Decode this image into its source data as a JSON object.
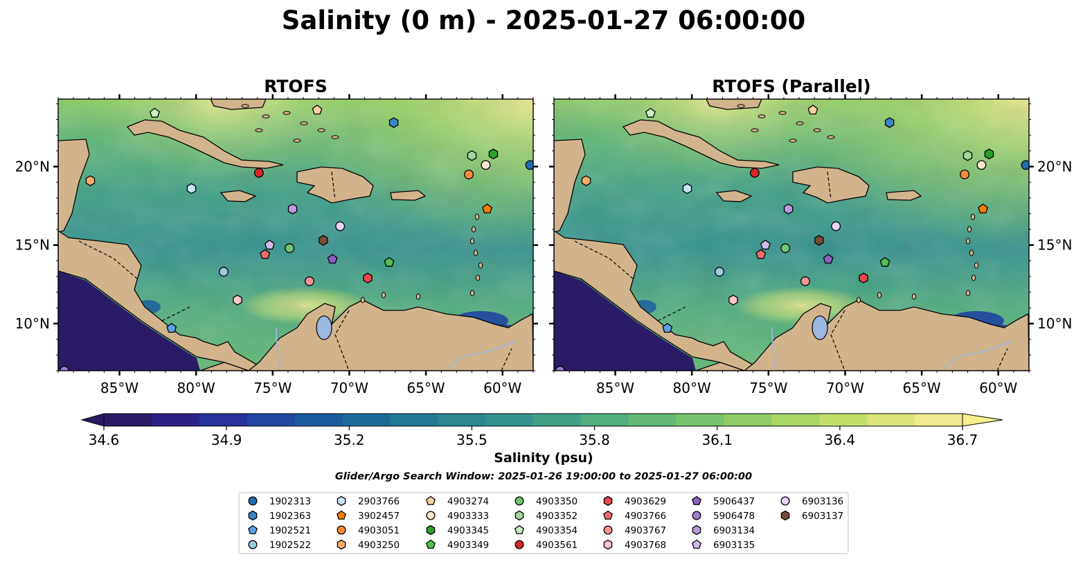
{
  "title": "Salinity (0 m) - 2025-01-27 06:00:00",
  "panels": [
    {
      "title": "RTOFS"
    },
    {
      "title": "RTOFS (Parallel)"
    }
  ],
  "lon_ticks": [
    "85°W",
    "80°W",
    "75°W",
    "70°W",
    "65°W",
    "60°W"
  ],
  "lat_ticks": [
    "20°N",
    "15°N",
    "10°N"
  ],
  "map_extent": {
    "lon": [
      -89,
      -58
    ],
    "lat": [
      7,
      24.3
    ]
  },
  "colorbar": {
    "label": "Salinity (psu)",
    "min": 34.6,
    "max": 36.7,
    "ticks": [
      "34.6",
      "34.9",
      "35.2",
      "35.5",
      "35.8",
      "36.1",
      "36.4",
      "36.7"
    ],
    "colors": [
      "#2b1b66",
      "#2c2185",
      "#27329a",
      "#1f46a0",
      "#1a5a9f",
      "#1b6a9a",
      "#227995",
      "#2b8692",
      "#35938d",
      "#42a087",
      "#52ad7f",
      "#63b975",
      "#78c36d",
      "#8ecc67",
      "#a7d665",
      "#c2df6c",
      "#dbe57a",
      "#f0ea90"
    ]
  },
  "search_window": "Glider/Argo Search Window: 2025-01-26 19:00:00 to 2025-01-27 06:00:00",
  "legend": [
    {
      "id": "1902313",
      "marker": "circle",
      "color": "#1f6fb4"
    },
    {
      "id": "1902363",
      "marker": "hexagon",
      "color": "#3d85c6"
    },
    {
      "id": "1902521",
      "marker": "pentagon",
      "color": "#5ba3e0"
    },
    {
      "id": "1902522",
      "marker": "circle",
      "color": "#9ecae1"
    },
    {
      "id": "2903766",
      "marker": "hexagon",
      "color": "#c6e5f7"
    },
    {
      "id": "3902457",
      "marker": "pentagon",
      "color": "#f57c00"
    },
    {
      "id": "4903051",
      "marker": "circle",
      "color": "#fd8d3c"
    },
    {
      "id": "4903250",
      "marker": "hexagon",
      "color": "#fdae6b"
    },
    {
      "id": "4903274",
      "marker": "pentagon",
      "color": "#fdd0a2"
    },
    {
      "id": "4903333",
      "marker": "circle",
      "color": "#fee6ce"
    },
    {
      "id": "4903345",
      "marker": "hexagon",
      "color": "#2ca02c"
    },
    {
      "id": "4903349",
      "marker": "pentagon",
      "color": "#52c152"
    },
    {
      "id": "4903350",
      "marker": "circle",
      "color": "#74c476"
    },
    {
      "id": "4903352",
      "marker": "hexagon",
      "color": "#a1d99b"
    },
    {
      "id": "4903354",
      "marker": "pentagon",
      "color": "#c7f0c0"
    },
    {
      "id": "4903561",
      "marker": "circle",
      "color": "#d62728"
    },
    {
      "id": "4903629",
      "marker": "hexagon",
      "color": "#e8484a"
    },
    {
      "id": "4903766",
      "marker": "pentagon",
      "color": "#f06b6d"
    },
    {
      "id": "4903767",
      "marker": "circle",
      "color": "#f59497"
    },
    {
      "id": "4903768",
      "marker": "hexagon",
      "color": "#fbc4c6"
    },
    {
      "id": "5906437",
      "marker": "pentagon",
      "color": "#8e5fc2"
    },
    {
      "id": "5906478",
      "marker": "circle",
      "color": "#a47ad1"
    },
    {
      "id": "6903134",
      "marker": "hexagon",
      "color": "#b99adf"
    },
    {
      "id": "6903135",
      "marker": "pentagon",
      "color": "#d2b8ec"
    },
    {
      "id": "6903136",
      "marker": "circle",
      "color": "#e8d4f7"
    },
    {
      "id": "6903137",
      "marker": "hexagon",
      "color": "#7a4a35"
    }
  ],
  "floats": [
    {
      "id": "1902313",
      "lon": -58.2,
      "lat": 20.1
    },
    {
      "id": "1902363",
      "lon": -67.1,
      "lat": 22.8
    },
    {
      "id": "1902521",
      "lon": -81.6,
      "lat": 9.7
    },
    {
      "id": "1902522",
      "lon": -78.2,
      "lat": 13.3
    },
    {
      "id": "2903766",
      "lon": -80.3,
      "lat": 18.6
    },
    {
      "id": "3902457",
      "lon": -61.0,
      "lat": 17.3
    },
    {
      "id": "4903051",
      "lon": -62.2,
      "lat": 19.5
    },
    {
      "id": "4903250",
      "lon": -86.9,
      "lat": 19.1
    },
    {
      "id": "4903274",
      "lon": -72.1,
      "lat": 23.6
    },
    {
      "id": "4903333",
      "lon": -61.1,
      "lat": 20.1
    },
    {
      "id": "4903345",
      "lon": -60.6,
      "lat": 20.8
    },
    {
      "id": "4903349",
      "lon": -67.4,
      "lat": 13.9
    },
    {
      "id": "4903350",
      "lon": -73.9,
      "lat": 14.8
    },
    {
      "id": "4903352",
      "lon": -62.0,
      "lat": 20.7
    },
    {
      "id": "4903354",
      "lon": -82.7,
      "lat": 23.4
    },
    {
      "id": "4903561",
      "lon": -75.9,
      "lat": 19.6
    },
    {
      "id": "4903629",
      "lon": -68.8,
      "lat": 12.9
    },
    {
      "id": "4903766",
      "lon": -75.5,
      "lat": 14.4
    },
    {
      "id": "4903767",
      "lon": -72.6,
      "lat": 12.7
    },
    {
      "id": "4903768",
      "lon": -77.3,
      "lat": 11.5
    },
    {
      "id": "5906437",
      "lon": -71.1,
      "lat": 14.1
    },
    {
      "id": "5906478",
      "lon": -88.6,
      "lat": 7.0
    },
    {
      "id": "6903134",
      "lon": -73.7,
      "lat": 17.3
    },
    {
      "id": "6903135",
      "lon": -75.2,
      "lat": 15.0
    },
    {
      "id": "6903136",
      "lon": -70.6,
      "lat": 16.2
    },
    {
      "id": "6903137",
      "lon": -71.7,
      "lat": 15.3
    }
  ]
}
